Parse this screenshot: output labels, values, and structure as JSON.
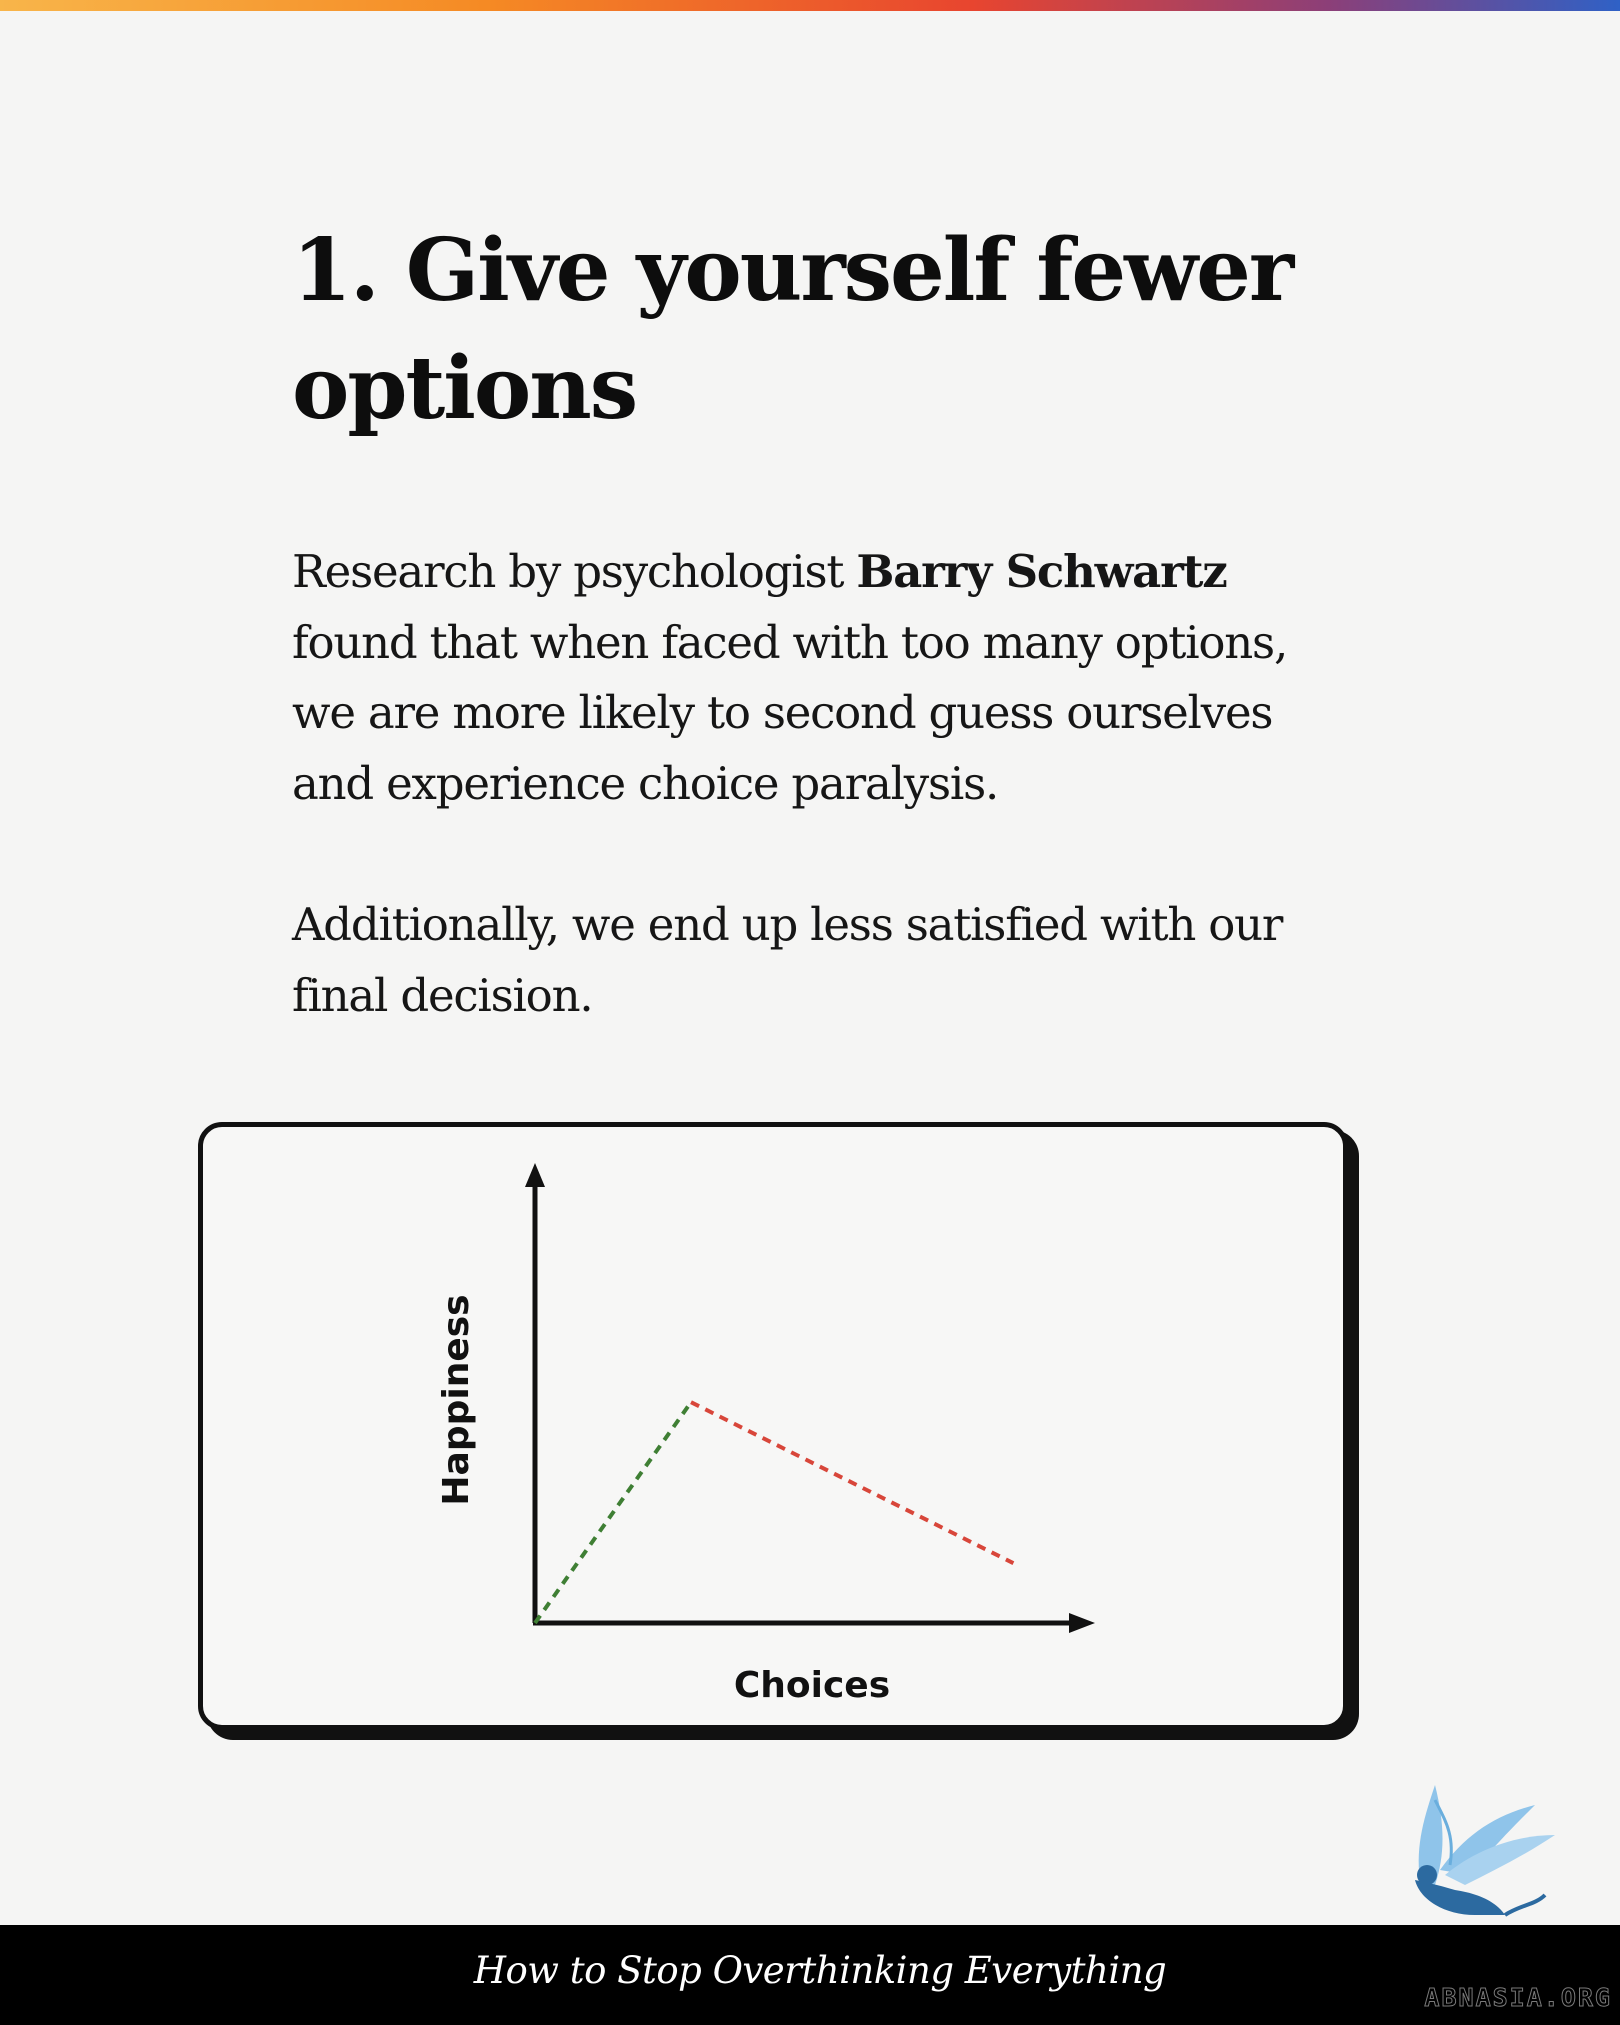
{
  "heading": "1. Give yourself fewer options",
  "paragraph1": {
    "before": "Research by psychologist ",
    "bold": "Barry Schwartz",
    "after": " found that when faced with too many options, we are more likely to second guess ourselves and experience choice paralysis."
  },
  "paragraph2": "Additionally, we end up less satisfied with our final decision.",
  "chart_data": {
    "type": "line",
    "xlabel": "Choices",
    "ylabel": "Happiness",
    "grid": false,
    "legend": "none",
    "series": [
      {
        "color": "#3f7f34",
        "style": "dashed",
        "x": [
          0,
          30
        ],
        "y": [
          0,
          48
        ]
      },
      {
        "color": "#d8463a",
        "style": "dashed",
        "x": [
          30,
          92
        ],
        "y": [
          48,
          13
        ]
      }
    ],
    "xlim": [
      0,
      100
    ],
    "ylim": [
      0,
      100
    ]
  },
  "footer": {
    "title": "How to Stop Overthinking Everything",
    "watermark": "ABNASIA.ORG"
  },
  "colors": {
    "heading": "#0d0d0d",
    "body_text": "#161616",
    "background": "#f5f5f4",
    "footer_bg": "#000000",
    "logo": "#8fc4ea"
  }
}
